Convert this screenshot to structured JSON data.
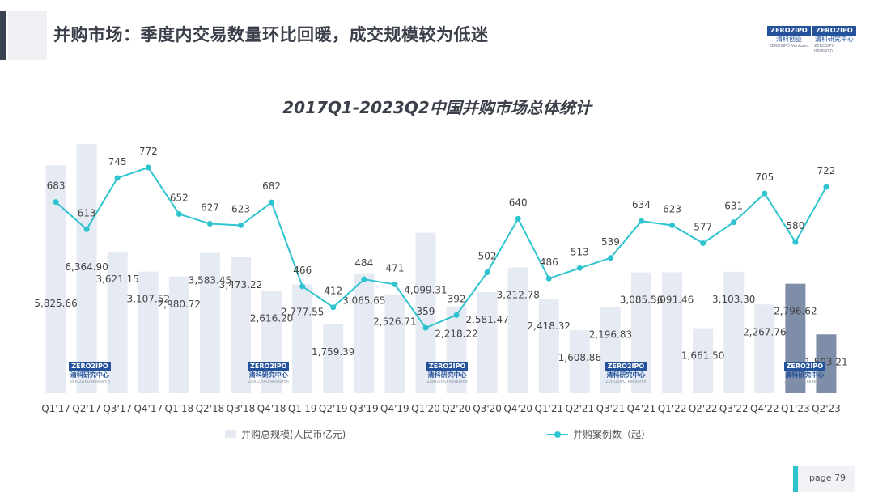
{
  "header": {
    "title": "并购市场：季度内交易数量环比回暖，成交规模较为低迷",
    "logo_text": "ZERO2IPO",
    "logo_name_left": "清科创业",
    "logo_name_right": "清科研究中心",
    "logo_sub_left": "ZERO2IPO Ventures",
    "logo_sub_right": "ZERO2IPO Research"
  },
  "watermark": {
    "top": "ZERO2IPO",
    "name": "清科研究中心",
    "sub": "ZERO2IPO Research"
  },
  "chart_data": {
    "type": "bar",
    "title": "2017Q1-2023Q2中国并购市场总体统计",
    "categories": [
      "Q1'17",
      "Q2'17",
      "Q3'17",
      "Q4'17",
      "Q1'18",
      "Q2'18",
      "Q3'18",
      "Q4'18",
      "Q1'19",
      "Q2'19",
      "Q3'19",
      "Q4'19",
      "Q1'20",
      "Q2'20",
      "Q3'20",
      "Q4'20",
      "Q1'21",
      "Q2'21",
      "Q3'21",
      "Q4'21",
      "Q1'22",
      "Q2'22",
      "Q3'22",
      "Q4'22",
      "Q1'23",
      "Q2'23"
    ],
    "series": [
      {
        "name": "并购总规模(人民币亿元)",
        "type": "bar",
        "values": [
          5825.66,
          6364.9,
          3621.15,
          3107.52,
          2980.72,
          3583.45,
          3473.22,
          2616.2,
          2777.55,
          1759.39,
          3065.65,
          2526.71,
          4099.31,
          2218.22,
          2581.47,
          3212.78,
          2418.32,
          1608.86,
          2196.83,
          3085.56,
          3091.46,
          1661.5,
          3103.3,
          2267.76,
          2796.62,
          1503.21
        ],
        "labels": [
          "5,825.66",
          "6,364.90",
          "3,621.15",
          "3,107.52",
          "2,980.72",
          "3,583.45",
          "3,473.22",
          "2,616.20",
          "2,777.55",
          "1,759.39",
          "3,065.65",
          "2,526.71",
          "4,099.31",
          "2,218.22",
          "2,581.47",
          "3,212.78",
          "2,418.32",
          "1,608.86",
          "2,196.83",
          "3,085.56",
          "3,091.46",
          "1,661.50",
          "3,103.30",
          "2,267.76",
          "2,796.62",
          "1,503.21"
        ],
        "color": "#e6eaf3",
        "highlight_color": "#7f8ea8"
      },
      {
        "name": "并购案例数（起）",
        "type": "line",
        "values": [
          683,
          613,
          745,
          772,
          652,
          627,
          623,
          682,
          466,
          412,
          484,
          471,
          359,
          392,
          502,
          640,
          486,
          513,
          539,
          634,
          623,
          577,
          631,
          705,
          580,
          722
        ],
        "color": "#2ec4cf"
      }
    ],
    "highlighted_categories": [
      "Q1'23",
      "Q2'23"
    ],
    "legend_position": "bottom",
    "grid": false
  },
  "footer": {
    "page_label": "page  79"
  }
}
